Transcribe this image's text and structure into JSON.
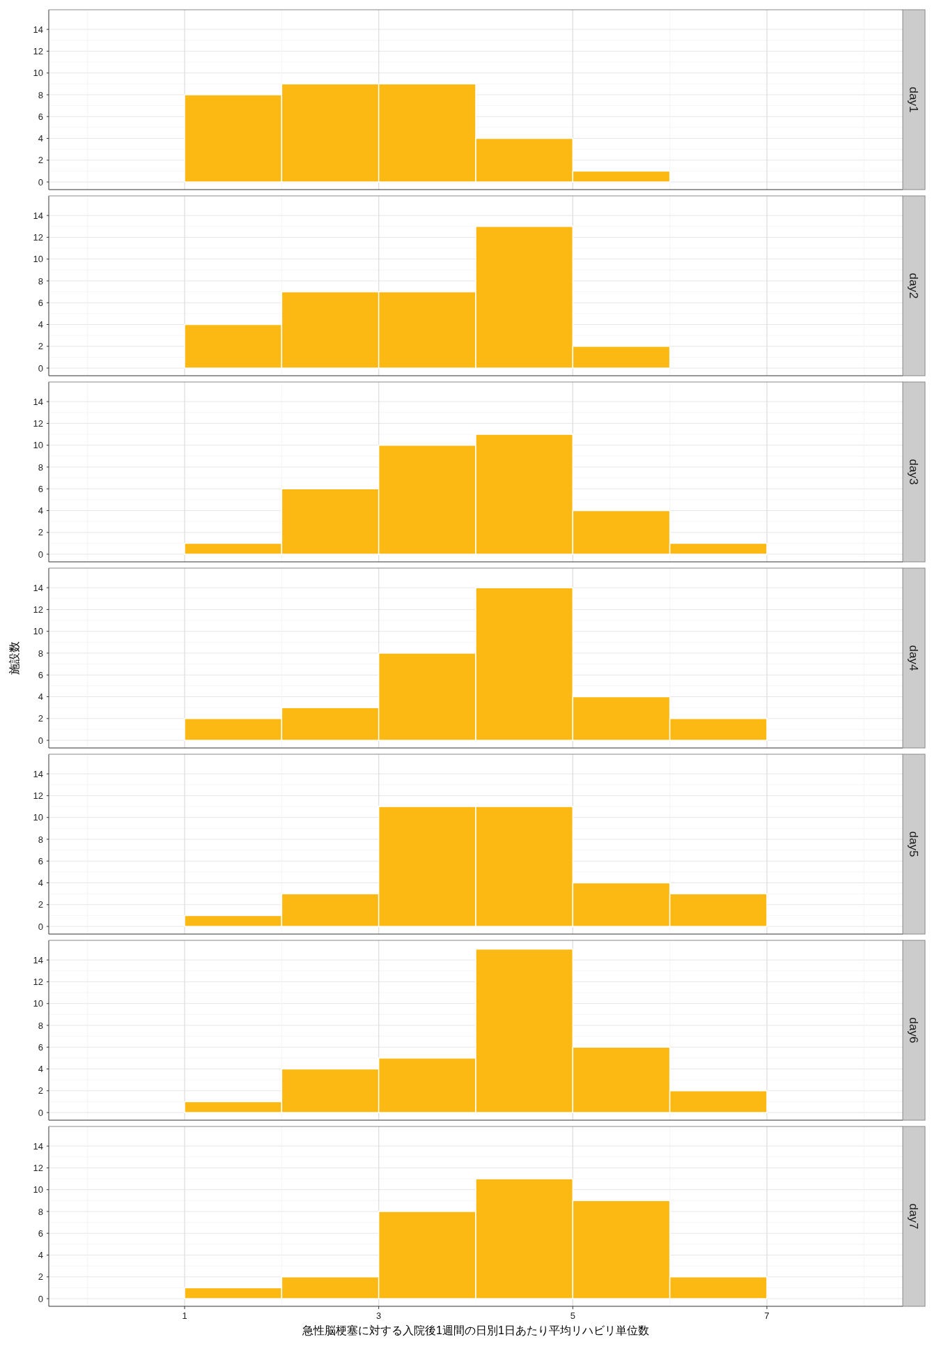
{
  "chart_data": [
    {
      "type": "histogram",
      "title": "day1",
      "bins": [
        1,
        2,
        3,
        4,
        5,
        6
      ],
      "values": [
        8,
        9,
        9,
        4,
        1
      ],
      "color": "#fdb913",
      "xlim": [
        -0.4,
        8.4
      ],
      "xticks": [
        {
          "value": 0,
          "label": null
        },
        1,
        {
          "value": 2,
          "label": null
        },
        3,
        5,
        {
          "value": 6,
          "label": null
        },
        7,
        {
          "value": 8,
          "label": null
        }
      ],
      "ylim": [
        -0.7,
        15.8
      ],
      "yticks": [
        0,
        2,
        4,
        6,
        8,
        10,
        12,
        14
      ],
      "grid": true,
      "tick_labels": "y"
    },
    {
      "type": "histogram",
      "title": "day2",
      "bins": [
        1,
        2,
        3,
        4,
        5,
        6
      ],
      "values": [
        4,
        7,
        7,
        13,
        2
      ],
      "color": "#fdb913",
      "xlim": [
        -0.4,
        8.4
      ],
      "xticks": [
        {
          "value": 0,
          "label": null
        },
        1,
        {
          "value": 2,
          "label": null
        },
        3,
        5,
        {
          "value": 6,
          "label": null
        },
        7,
        {
          "value": 8,
          "label": null
        }
      ],
      "ylim": [
        -0.7,
        15.8
      ],
      "yticks": [
        0,
        2,
        4,
        6,
        8,
        10,
        12,
        14
      ],
      "grid": true,
      "tick_labels": "y"
    },
    {
      "type": "histogram",
      "title": "day3",
      "bins": [
        1,
        2,
        3,
        4,
        5,
        6,
        7
      ],
      "values": [
        1,
        6,
        10,
        11,
        4,
        1
      ],
      "color": "#fdb913",
      "xlim": [
        -0.4,
        8.4
      ],
      "xticks": [
        {
          "value": 0,
          "label": null
        },
        1,
        {
          "value": 2,
          "label": null
        },
        3,
        5,
        {
          "value": 6,
          "label": null
        },
        7,
        {
          "value": 8,
          "label": null
        }
      ],
      "ylim": [
        -0.7,
        15.8
      ],
      "yticks": [
        0,
        2,
        4,
        6,
        8,
        10,
        12,
        14
      ],
      "grid": true,
      "tick_labels": "y"
    },
    {
      "type": "histogram",
      "title": "day4",
      "ylabel": "施設数",
      "bins": [
        1,
        2,
        3,
        4,
        5,
        6,
        7
      ],
      "values": [
        2,
        3,
        8,
        14,
        4,
        2
      ],
      "color": "#fdb913",
      "xlim": [
        -0.4,
        8.4
      ],
      "xticks": [
        {
          "value": 0,
          "label": null
        },
        1,
        {
          "value": 2,
          "label": null
        },
        3,
        5,
        {
          "value": 6,
          "label": null
        },
        7,
        {
          "value": 8,
          "label": null
        }
      ],
      "ylim": [
        -0.7,
        15.8
      ],
      "yticks": [
        0,
        2,
        4,
        6,
        8,
        10,
        12,
        14
      ],
      "grid": true,
      "tick_labels": "y"
    },
    {
      "type": "histogram",
      "title": "day5",
      "bins": [
        1,
        2,
        3,
        4,
        5,
        6,
        7
      ],
      "values": [
        1,
        3,
        11,
        11,
        4,
        3
      ],
      "color": "#fdb913",
      "xlim": [
        -0.4,
        8.4
      ],
      "xticks": [
        {
          "value": 0,
          "label": null
        },
        1,
        {
          "value": 2,
          "label": null
        },
        3,
        5,
        {
          "value": 6,
          "label": null
        },
        7,
        {
          "value": 8,
          "label": null
        }
      ],
      "ylim": [
        -0.7,
        15.8
      ],
      "yticks": [
        0,
        2,
        4,
        6,
        8,
        10,
        12,
        14
      ],
      "grid": true,
      "tick_labels": "y"
    },
    {
      "type": "histogram",
      "title": "day6",
      "bins": [
        1,
        2,
        3,
        4,
        5,
        6,
        7
      ],
      "values": [
        1,
        4,
        5,
        15,
        6,
        2
      ],
      "color": "#fdb913",
      "xlim": [
        -0.4,
        8.4
      ],
      "xticks": [
        {
          "value": 0,
          "label": null
        },
        1,
        {
          "value": 2,
          "label": null
        },
        3,
        5,
        {
          "value": 6,
          "label": null
        },
        7,
        {
          "value": 8,
          "label": null
        }
      ],
      "ylim": [
        -0.7,
        15.8
      ],
      "yticks": [
        0,
        2,
        4,
        6,
        8,
        10,
        12,
        14
      ],
      "grid": true,
      "tick_labels": "y"
    },
    {
      "type": "histogram",
      "title": "day7",
      "xlabel": "急性脳梗塞に対する入院後1週間の日別1日あたり平均リハビリ単位数",
      "bins": [
        1,
        2,
        3,
        4,
        5,
        6,
        7
      ],
      "values": [
        1,
        2,
        8,
        11,
        9,
        2
      ],
      "color": "#fdb913",
      "xlim": [
        -0.4,
        8.4
      ],
      "xticks": [
        {
          "value": 0,
          "label": null
        },
        1,
        {
          "value": 2,
          "label": null
        },
        3,
        5,
        {
          "value": 6,
          "label": null
        },
        7,
        {
          "value": 8,
          "label": null
        }
      ],
      "ylim": [
        -0.7,
        15.8
      ],
      "yticks": [
        0,
        2,
        4,
        6,
        8,
        10,
        12,
        14
      ],
      "grid": true
    }
  ]
}
